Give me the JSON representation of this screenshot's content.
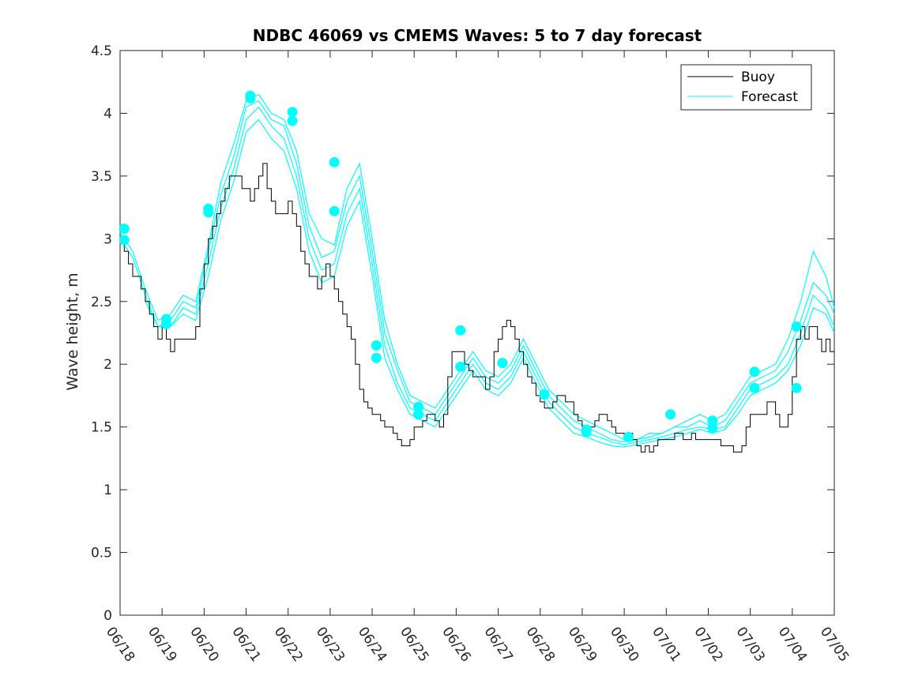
{
  "chart_data": {
    "type": "line",
    "title": "NDBC 46069 vs CMEMS Waves: 5 to 7 day forecast",
    "xlabel": "",
    "ylabel": "Wave height, m",
    "ylim": [
      0,
      4.5
    ],
    "xlim": [
      "06/18",
      "07/05"
    ],
    "x_unit": "date (MM/DD), 1-day ticks",
    "y_ticks": [
      "0",
      "0.5",
      "1",
      "1.5",
      "2",
      "2.5",
      "3",
      "3.5",
      "4",
      "4.5"
    ],
    "x_ticks": [
      "06/18",
      "06/19",
      "06/20",
      "06/21",
      "06/22",
      "06/23",
      "06/24",
      "06/25",
      "06/26",
      "06/27",
      "06/28",
      "06/29",
      "06/30",
      "07/01",
      "07/02",
      "07/03",
      "07/04",
      "07/05"
    ],
    "grid": false,
    "legend_position": "top-right",
    "legend": [
      "Buoy",
      "Forecast"
    ],
    "colors": {
      "buoy": "#000000",
      "forecast": "#00ffff",
      "axis": "#262626"
    },
    "buoy": {
      "name": "Buoy",
      "x": [
        0,
        0.1,
        0.2,
        0.3,
        0.4,
        0.5,
        0.6,
        0.7,
        0.8,
        0.9,
        1.0,
        1.1,
        1.2,
        1.3,
        1.4,
        1.5,
        1.6,
        1.7,
        1.8,
        1.9,
        2.0,
        2.1,
        2.2,
        2.3,
        2.4,
        2.5,
        2.6,
        2.7,
        2.8,
        2.9,
        3.0,
        3.1,
        3.2,
        3.3,
        3.4,
        3.5,
        3.6,
        3.7,
        3.8,
        3.9,
        4.0,
        4.1,
        4.2,
        4.3,
        4.4,
        4.5,
        4.6,
        4.7,
        4.8,
        4.9,
        5.0,
        5.1,
        5.2,
        5.3,
        5.4,
        5.5,
        5.6,
        5.7,
        5.8,
        5.9,
        6.0,
        6.1,
        6.2,
        6.3,
        6.4,
        6.5,
        6.6,
        6.7,
        6.8,
        6.9,
        7.0,
        7.1,
        7.2,
        7.3,
        7.4,
        7.5,
        7.6,
        7.7,
        7.8,
        7.9,
        8.0,
        8.1,
        8.2,
        8.3,
        8.4,
        8.5,
        8.6,
        8.7,
        8.8,
        8.9,
        9.0,
        9.1,
        9.2,
        9.3,
        9.4,
        9.5,
        9.6,
        9.7,
        9.8,
        9.9,
        10.0,
        10.1,
        10.2,
        10.3,
        10.4,
        10.5,
        10.6,
        10.7,
        10.8,
        10.9,
        11.0,
        11.1,
        11.2,
        11.3,
        11.4,
        11.5,
        11.6,
        11.7,
        11.8,
        11.9,
        12.0,
        12.1,
        12.2,
        12.3,
        12.4,
        12.5,
        12.6,
        12.7,
        12.8,
        12.9,
        13.0,
        13.1,
        13.2,
        13.3,
        13.4,
        13.5,
        13.6,
        13.7,
        13.8,
        13.9,
        14.0,
        14.1,
        14.2,
        14.3,
        14.4,
        14.5,
        14.6,
        14.7,
        14.8,
        14.9,
        15.0,
        15.1,
        15.2,
        15.3,
        15.4,
        15.5,
        15.6,
        15.7,
        15.8,
        15.9,
        16.0,
        16.1,
        16.2,
        16.3,
        16.4,
        16.5,
        16.6,
        16.7,
        16.8,
        16.9,
        17.0
      ],
      "y": [
        3.0,
        2.9,
        2.8,
        2.7,
        2.7,
        2.6,
        2.5,
        2.4,
        2.3,
        2.2,
        2.3,
        2.2,
        2.1,
        2.2,
        2.2,
        2.2,
        2.2,
        2.2,
        2.3,
        2.6,
        2.8,
        3.0,
        3.1,
        3.2,
        3.3,
        3.4,
        3.5,
        3.5,
        3.5,
        3.4,
        3.4,
        3.3,
        3.4,
        3.5,
        3.6,
        3.4,
        3.3,
        3.2,
        3.2,
        3.2,
        3.3,
        3.2,
        3.1,
        2.9,
        2.8,
        2.7,
        2.7,
        2.6,
        2.7,
        2.8,
        2.7,
        2.6,
        2.5,
        2.4,
        2.3,
        2.2,
        2.0,
        1.8,
        1.7,
        1.65,
        1.6,
        1.6,
        1.55,
        1.5,
        1.5,
        1.45,
        1.4,
        1.35,
        1.35,
        1.4,
        1.5,
        1.5,
        1.55,
        1.6,
        1.6,
        1.55,
        1.5,
        1.6,
        1.9,
        2.1,
        2.1,
        2.1,
        2.0,
        1.95,
        1.9,
        1.9,
        1.9,
        1.8,
        1.9,
        2.1,
        2.2,
        2.3,
        2.35,
        2.3,
        2.2,
        2.1,
        2.0,
        1.9,
        1.85,
        1.75,
        1.7,
        1.65,
        1.65,
        1.7,
        1.75,
        1.75,
        1.7,
        1.7,
        1.6,
        1.55,
        1.5,
        1.5,
        1.5,
        1.55,
        1.6,
        1.6,
        1.55,
        1.5,
        1.45,
        1.45,
        1.4,
        1.45,
        1.4,
        1.35,
        1.3,
        1.35,
        1.3,
        1.35,
        1.4,
        1.4,
        1.4,
        1.4,
        1.45,
        1.45,
        1.4,
        1.4,
        1.45,
        1.4,
        1.4,
        1.4,
        1.4,
        1.4,
        1.4,
        1.35,
        1.35,
        1.35,
        1.3,
        1.3,
        1.35,
        1.5,
        1.6,
        1.6,
        1.6,
        1.6,
        1.7,
        1.7,
        1.6,
        1.5,
        1.5,
        1.6,
        1.9,
        2.2,
        2.3,
        2.2,
        2.3,
        2.3,
        2.2,
        2.1,
        2.2,
        2.1,
        2.1
      ],
      "noise_note": ""
    },
    "forecast_series": [
      {
        "name": "Forecast",
        "x": [
          0,
          0.3,
          0.6,
          0.9,
          1.2,
          1.5,
          1.8,
          2.1,
          2.4,
          2.7,
          3.0,
          3.3,
          3.6,
          3.9,
          4.2,
          4.5,
          4.8,
          5.1,
          5.4,
          5.7,
          6.0,
          6.3,
          6.6,
          6.9,
          7.2,
          7.5,
          7.8,
          8.1,
          8.4,
          8.7,
          9.0,
          9.3,
          9.6,
          9.9,
          10.2,
          10.5,
          10.8,
          11.1,
          11.4,
          11.7,
          12.0,
          12.3,
          12.6,
          12.9,
          13.2,
          13.5,
          13.8,
          14.1,
          14.4,
          14.7,
          15.0,
          15.3,
          15.6,
          15.9,
          16.2,
          16.5,
          16.8,
          17.0
        ],
        "y": [
          3.05,
          2.9,
          2.6,
          2.35,
          2.4,
          2.55,
          2.5,
          2.95,
          3.45,
          3.75,
          4.1,
          4.15,
          4.0,
          3.95,
          3.7,
          3.2,
          3.0,
          2.95,
          3.4,
          3.6,
          3.0,
          2.35,
          2.0,
          1.75,
          1.7,
          1.65,
          1.8,
          1.95,
          2.1,
          1.95,
          1.9,
          2.0,
          2.2,
          2.0,
          1.8,
          1.7,
          1.6,
          1.55,
          1.5,
          1.45,
          1.4,
          1.4,
          1.45,
          1.45,
          1.5,
          1.55,
          1.6,
          1.55,
          1.6,
          1.75,
          1.9,
          1.95,
          2.0,
          2.2,
          2.5,
          2.9,
          2.7,
          2.45
        ]
      },
      {
        "name": "Forecast",
        "x": [
          0,
          0.3,
          0.6,
          0.9,
          1.2,
          1.5,
          1.8,
          2.1,
          2.4,
          2.7,
          3.0,
          3.3,
          3.6,
          3.9,
          4.2,
          4.5,
          4.8,
          5.1,
          5.4,
          5.7,
          6.0,
          6.3,
          6.6,
          6.9,
          7.2,
          7.5,
          7.8,
          8.1,
          8.4,
          8.7,
          9.0,
          9.3,
          9.6,
          9.9,
          10.2,
          10.5,
          10.8,
          11.1,
          11.4,
          11.7,
          12.0,
          12.3,
          12.6,
          12.9,
          13.2,
          13.5,
          13.8,
          14.1,
          14.4,
          14.7,
          15.0,
          15.3,
          15.6,
          15.9,
          16.2,
          16.5,
          16.8,
          17.0
        ],
        "y": [
          3.0,
          2.85,
          2.55,
          2.3,
          2.35,
          2.5,
          2.45,
          2.9,
          3.35,
          3.65,
          4.05,
          4.1,
          3.95,
          3.9,
          3.6,
          3.1,
          2.85,
          2.9,
          3.3,
          3.5,
          2.9,
          2.25,
          1.95,
          1.7,
          1.65,
          1.6,
          1.75,
          1.9,
          2.05,
          1.9,
          1.85,
          1.95,
          2.15,
          1.95,
          1.75,
          1.65,
          1.55,
          1.5,
          1.45,
          1.4,
          1.38,
          1.4,
          1.42,
          1.45,
          1.5,
          1.5,
          1.55,
          1.5,
          1.55,
          1.7,
          1.85,
          1.9,
          1.95,
          2.1,
          2.35,
          2.65,
          2.55,
          2.4
        ]
      },
      {
        "name": "Forecast",
        "x": [
          0.6,
          0.9,
          1.2,
          1.5,
          1.8,
          2.1,
          2.4,
          2.7,
          3.0,
          3.3,
          3.6,
          3.9,
          4.2,
          4.5,
          4.8,
          5.1,
          5.4,
          5.7,
          6.0,
          6.3,
          6.6,
          6.9,
          7.2,
          7.5,
          7.8,
          8.1,
          8.4,
          8.7,
          9.0,
          9.3,
          9.6,
          9.9,
          10.2,
          10.5,
          10.8,
          11.1,
          11.4,
          11.7,
          12.0,
          12.3,
          12.6,
          12.9,
          13.2,
          13.5,
          13.8,
          14.1,
          14.4,
          14.7,
          15.0,
          15.3,
          15.6,
          15.9,
          16.2,
          16.5,
          16.8,
          17.0
        ],
        "y": [
          2.5,
          2.3,
          2.3,
          2.45,
          2.4,
          2.8,
          3.25,
          3.55,
          3.95,
          4.05,
          3.9,
          3.8,
          3.5,
          3.0,
          2.75,
          2.8,
          3.2,
          3.4,
          2.8,
          2.15,
          1.85,
          1.65,
          1.6,
          1.55,
          1.7,
          1.85,
          2.0,
          1.85,
          1.8,
          1.9,
          2.1,
          1.9,
          1.7,
          1.6,
          1.5,
          1.45,
          1.42,
          1.38,
          1.36,
          1.38,
          1.4,
          1.42,
          1.45,
          1.48,
          1.5,
          1.48,
          1.5,
          1.65,
          1.8,
          1.85,
          1.9,
          2.0,
          2.25,
          2.55,
          2.45,
          2.3
        ]
      },
      {
        "name": "Forecast",
        "x": [
          1.2,
          1.5,
          1.8,
          2.1,
          2.4,
          2.7,
          3.0,
          3.3,
          3.6,
          3.9,
          4.2,
          4.5,
          4.8,
          5.1,
          5.4,
          5.7,
          6.0,
          6.3,
          6.6,
          6.9,
          7.2,
          7.5,
          7.8,
          8.1,
          8.4,
          8.7,
          9.0,
          9.3,
          9.6,
          9.9,
          10.2,
          10.5,
          10.8,
          11.1,
          11.4,
          11.7,
          12.0,
          12.3,
          12.6,
          12.9,
          13.2,
          13.5,
          13.8,
          14.1,
          14.4,
          14.7,
          15.0,
          15.3,
          15.6,
          15.9,
          16.2,
          16.5,
          16.8,
          17.0
        ],
        "y": [
          2.3,
          2.4,
          2.35,
          2.7,
          3.15,
          3.45,
          3.85,
          3.95,
          3.8,
          3.7,
          3.4,
          2.9,
          2.65,
          2.7,
          3.1,
          3.3,
          2.7,
          2.05,
          1.8,
          1.6,
          1.55,
          1.5,
          1.65,
          1.8,
          1.95,
          1.8,
          1.75,
          1.85,
          2.05,
          1.85,
          1.65,
          1.55,
          1.45,
          1.42,
          1.38,
          1.35,
          1.34,
          1.36,
          1.38,
          1.4,
          1.42,
          1.45,
          1.48,
          1.45,
          1.48,
          1.6,
          1.75,
          1.8,
          1.85,
          1.95,
          2.15,
          2.45,
          2.4,
          2.25
        ]
      }
    ],
    "forecast_markers": [
      {
        "x": 0.1,
        "y": 3.08
      },
      {
        "x": 0.1,
        "y": 2.99
      },
      {
        "x": 1.1,
        "y": 2.36
      },
      {
        "x": 1.1,
        "y": 2.32
      },
      {
        "x": 2.1,
        "y": 3.24
      },
      {
        "x": 2.1,
        "y": 3.21
      },
      {
        "x": 3.1,
        "y": 4.14
      },
      {
        "x": 3.1,
        "y": 4.12
      },
      {
        "x": 4.1,
        "y": 4.01
      },
      {
        "x": 4.1,
        "y": 3.94
      },
      {
        "x": 5.1,
        "y": 3.61
      },
      {
        "x": 5.1,
        "y": 3.22
      },
      {
        "x": 6.1,
        "y": 2.15
      },
      {
        "x": 6.1,
        "y": 2.05
      },
      {
        "x": 7.1,
        "y": 1.66
      },
      {
        "x": 7.1,
        "y": 1.6
      },
      {
        "x": 8.1,
        "y": 2.27
      },
      {
        "x": 8.1,
        "y": 1.98
      },
      {
        "x": 9.1,
        "y": 2.01
      },
      {
        "x": 10.1,
        "y": 1.76
      },
      {
        "x": 11.1,
        "y": 1.48
      },
      {
        "x": 11.1,
        "y": 1.46
      },
      {
        "x": 12.1,
        "y": 1.42
      },
      {
        "x": 13.1,
        "y": 1.6
      },
      {
        "x": 14.1,
        "y": 1.55
      },
      {
        "x": 14.1,
        "y": 1.49
      },
      {
        "x": 15.1,
        "y": 1.94
      },
      {
        "x": 15.1,
        "y": 1.81
      },
      {
        "x": 16.1,
        "y": 2.3
      },
      {
        "x": 16.1,
        "y": 1.81
      }
    ]
  }
}
